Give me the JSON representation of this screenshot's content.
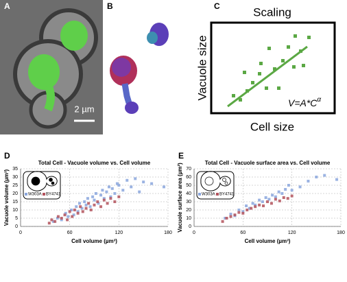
{
  "panels": {
    "a": {
      "label": "A",
      "scale_bar": "2 µm"
    },
    "b": {
      "label": "B"
    },
    "c": {
      "label": "C",
      "title": "Scaling",
      "ylabel": "Vacuole size",
      "xlabel": "Cell size",
      "formula": "V=A*C",
      "formula_exponent": "α"
    }
  },
  "chart_data": [
    {
      "type": "scatter",
      "panel_label": "D",
      "title": "Total Cell - Vacuole volume vs. Cell volume",
      "xlabel": "Cell volume (µm³)",
      "ylabel": "Vacuole volume (µm³)",
      "xlim": [
        0,
        180
      ],
      "xticks": [
        0,
        60,
        120,
        180
      ],
      "ylim": [
        0,
        35
      ],
      "yticks": [
        0,
        5,
        10,
        15,
        20,
        25,
        30,
        35
      ],
      "grid": true,
      "legend": "upper left",
      "series": [
        {
          "name": "W303A",
          "color": "#8aa6dd",
          "x": [
            40,
            45,
            50,
            55,
            58,
            62,
            65,
            68,
            70,
            72,
            75,
            78,
            80,
            82,
            85,
            88,
            90,
            92,
            95,
            98,
            100,
            102,
            105,
            108,
            110,
            112,
            115,
            118,
            120,
            125,
            130,
            135,
            140,
            145,
            150,
            160,
            175
          ],
          "y": [
            3,
            5,
            4,
            8,
            6,
            10,
            7,
            12,
            9,
            14,
            11,
            15,
            13,
            17,
            12,
            18,
            16,
            20,
            14,
            19,
            22,
            17,
            21,
            24,
            18,
            23,
            20,
            26,
            25,
            22,
            28,
            24,
            29,
            21,
            27,
            26,
            24
          ]
        },
        {
          "name": "BY4741",
          "color": "#b3525c",
          "x": [
            35,
            38,
            42,
            46,
            50,
            54,
            57,
            60,
            63,
            66,
            70,
            73,
            76,
            80,
            83,
            86,
            90,
            94,
            98,
            102,
            106,
            110,
            115,
            120
          ],
          "y": [
            2,
            4,
            3,
            6,
            5,
            7,
            4,
            9,
            6,
            10,
            8,
            12,
            9,
            11,
            14,
            10,
            13,
            15,
            12,
            16,
            14,
            17,
            15,
            18
          ]
        }
      ]
    },
    {
      "type": "scatter",
      "panel_label": "E",
      "title": "Total Cell - Vacuole surface area vs. Cell volume",
      "xlabel": "Cell volume (µm³)",
      "ylabel": "Vacuole surface area (µm²)",
      "xlim": [
        0,
        180
      ],
      "xticks": [
        0,
        60,
        120,
        180
      ],
      "ylim": [
        0,
        70
      ],
      "yticks": [
        0,
        10,
        20,
        30,
        40,
        50,
        60,
        70
      ],
      "grid": true,
      "legend": "upper left",
      "series": [
        {
          "name": "W303A",
          "color": "#8aa6dd",
          "x": [
            38,
            45,
            50,
            55,
            60,
            64,
            68,
            72,
            75,
            80,
            84,
            88,
            92,
            96,
            100,
            104,
            108,
            112,
            116,
            120,
            130,
            140,
            150,
            160,
            175
          ],
          "y": [
            10,
            15,
            13,
            20,
            18,
            25,
            22,
            28,
            26,
            32,
            30,
            35,
            33,
            38,
            36,
            42,
            40,
            45,
            50,
            44,
            48,
            55,
            60,
            62,
            57
          ]
        },
        {
          "name": "BY4741",
          "color": "#b3525c",
          "x": [
            35,
            40,
            45,
            50,
            55,
            60,
            65,
            70,
            75,
            80,
            85,
            90,
            95,
            100,
            105,
            110,
            115,
            120
          ],
          "y": [
            6,
            10,
            12,
            14,
            17,
            16,
            20,
            22,
            24,
            26,
            25,
            30,
            28,
            33,
            31,
            35,
            34,
            37
          ]
        }
      ]
    }
  ]
}
